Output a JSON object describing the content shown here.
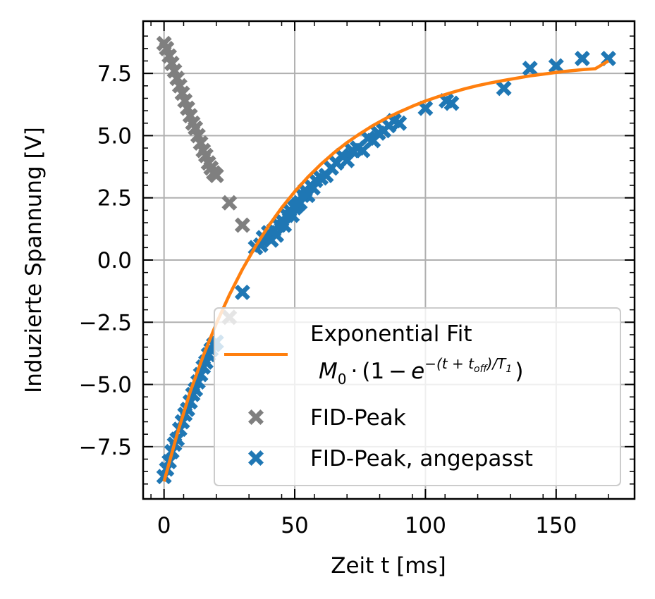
{
  "chart_data": {
    "type": "scatter",
    "xlabel": "Zeit t [ms]",
    "ylabel": "Induzierte Spannung [V]",
    "xlim": [
      -8,
      180
    ],
    "ylim": [
      -9.6,
      9.6
    ],
    "x_ticks": [
      0,
      50,
      100,
      150
    ],
    "x_tick_labels": [
      "0",
      "50",
      "100",
      "150"
    ],
    "y_ticks": [
      -7.5,
      -5.0,
      -2.5,
      0.0,
      2.5,
      5.0,
      7.5
    ],
    "y_tick_labels": [
      "−7.5",
      "−5.0",
      "−2.5",
      "0.0",
      "2.5",
      "5.0",
      "7.5"
    ],
    "grid": true,
    "legend_position": "lower right",
    "series": [
      {
        "name": "FID-Peak",
        "kind": "scatter",
        "marker": "X",
        "color": "#7f7f7f",
        "points": [
          [
            0,
            8.7
          ],
          [
            1,
            8.5
          ],
          [
            2,
            8.2
          ],
          [
            3,
            7.9
          ],
          [
            4,
            7.6
          ],
          [
            5,
            7.3
          ],
          [
            6,
            7.0
          ],
          [
            7,
            6.7
          ],
          [
            8,
            6.4
          ],
          [
            9,
            6.1
          ],
          [
            10,
            5.8
          ],
          [
            11,
            5.5
          ],
          [
            12,
            5.3
          ],
          [
            13,
            5.0
          ],
          [
            14,
            4.7
          ],
          [
            15,
            4.4
          ],
          [
            16,
            4.2
          ],
          [
            17,
            3.9
          ],
          [
            18,
            3.7
          ],
          [
            19,
            3.5
          ],
          [
            20,
            3.4
          ],
          [
            25,
            2.3
          ],
          [
            30,
            1.4
          ],
          [
            25,
            -2.3
          ]
        ]
      },
      {
        "name": "FID-Peak, angepasst",
        "kind": "scatter",
        "marker": "X",
        "color": "#1f77b4",
        "points": [
          [
            0,
            -8.7
          ],
          [
            1,
            -8.4
          ],
          [
            2,
            -8.1
          ],
          [
            3,
            -7.7
          ],
          [
            4,
            -7.4
          ],
          [
            5,
            -7.2
          ],
          [
            6,
            -6.8
          ],
          [
            7,
            -6.5
          ],
          [
            8,
            -6.2
          ],
          [
            9,
            -6.0
          ],
          [
            10,
            -5.7
          ],
          [
            11,
            -5.4
          ],
          [
            12,
            -5.2
          ],
          [
            13,
            -4.9
          ],
          [
            14,
            -4.6
          ],
          [
            15,
            -4.3
          ],
          [
            16,
            -4.1
          ],
          [
            17,
            -3.8
          ],
          [
            18,
            -3.6
          ],
          [
            19,
            -3.4
          ],
          [
            20,
            -3.3
          ],
          [
            30,
            -1.3
          ],
          [
            35,
            0.5
          ],
          [
            37,
            0.6
          ],
          [
            38,
            0.9
          ],
          [
            40,
            1.1
          ],
          [
            41,
            0.8
          ],
          [
            42,
            1.2
          ],
          [
            43,
            1.0
          ],
          [
            44,
            1.4
          ],
          [
            45,
            1.6
          ],
          [
            46,
            1.4
          ],
          [
            47,
            1.8
          ],
          [
            48,
            2.0
          ],
          [
            49,
            1.8
          ],
          [
            50,
            2.1
          ],
          [
            51,
            2.2
          ],
          [
            52,
            2.3
          ],
          [
            53,
            2.6
          ],
          [
            54,
            2.8
          ],
          [
            55,
            2.6
          ],
          [
            56,
            3.0
          ],
          [
            57,
            2.9
          ],
          [
            58,
            3.2
          ],
          [
            60,
            3.3
          ],
          [
            62,
            3.4
          ],
          [
            64,
            3.7
          ],
          [
            66,
            3.9
          ],
          [
            68,
            4.2
          ],
          [
            70,
            4.0
          ],
          [
            72,
            4.4
          ],
          [
            74,
            4.5
          ],
          [
            76,
            4.4
          ],
          [
            78,
            4.9
          ],
          [
            80,
            4.8
          ],
          [
            82,
            5.1
          ],
          [
            84,
            5.2
          ],
          [
            86,
            5.4
          ],
          [
            88,
            5.6
          ],
          [
            90,
            5.5
          ],
          [
            100,
            6.1
          ],
          [
            108,
            6.4
          ],
          [
            110,
            6.3
          ],
          [
            130,
            6.9
          ],
          [
            140,
            7.7
          ],
          [
            150,
            7.8
          ],
          [
            160,
            8.1
          ],
          [
            170,
            8.1
          ]
        ]
      },
      {
        "name": "Exponential Fit",
        "kind": "line",
        "color": "#ff7f0e",
        "x": [
          0,
          5,
          10,
          15,
          20,
          25,
          30,
          35,
          40,
          45,
          50,
          55,
          60,
          65,
          70,
          75,
          80,
          85,
          90,
          95,
          100,
          105,
          110,
          115,
          120,
          125,
          130,
          135,
          140,
          145,
          150,
          155,
          160,
          165,
          170
        ],
        "y": [
          -8.9,
          -7.0,
          -5.3,
          -3.85,
          -2.55,
          -1.4,
          -0.37,
          0.55,
          1.37,
          2.1,
          2.75,
          3.33,
          3.85,
          4.31,
          4.72,
          5.08,
          5.41,
          5.7,
          5.95,
          6.18,
          6.39,
          6.57,
          6.73,
          6.88,
          7.01,
          7.12,
          7.22,
          7.31,
          7.4,
          7.47,
          7.54,
          7.6,
          7.65,
          7.69,
          8.0
        ]
      }
    ],
    "legend": {
      "fit_label_line1": "Exponential Fit",
      "fit_formula": {
        "M": "M",
        "M_sub": "0",
        "dot": "·",
        "open": "(1",
        "minus": "−",
        "e": "e",
        "exponent": "−(t + t",
        "exponent_sub": "off",
        "exponent_tail": ")/T",
        "exponent_tail_sub": "1",
        "close": ")"
      },
      "scatter1_label": "FID-Peak",
      "scatter2_label": "FID-Peak, angepasst"
    }
  }
}
